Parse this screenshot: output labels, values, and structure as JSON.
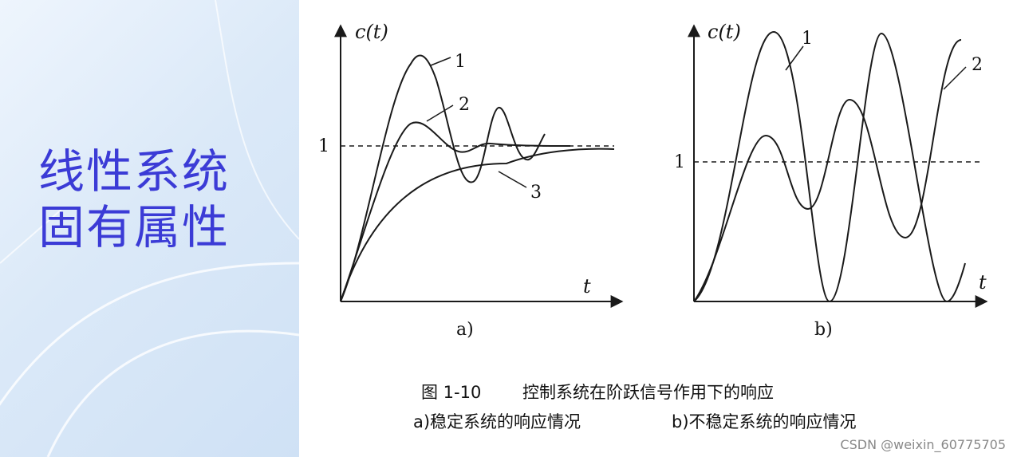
{
  "slide": {
    "title_line1": "线性系统",
    "title_line2": "固有属性"
  },
  "figure": {
    "panel_a": {
      "y_axis_label": "c(t)",
      "x_axis_label": "t",
      "ref_label": "1",
      "curve_labels": [
        "1",
        "2",
        "3"
      ],
      "sub_label": "a)"
    },
    "panel_b": {
      "y_axis_label": "c(t)",
      "x_axis_label": "t",
      "ref_label": "1",
      "curve_labels": [
        "1",
        "2"
      ],
      "sub_label": "b)"
    },
    "caption": {
      "line1_number": "图 1-10",
      "line1_text": "控制系统在阶跃信号作用下的响应",
      "line2_a": "a)稳定系统的响应情况",
      "line2_b": "b)不稳定系统的响应情况"
    }
  },
  "watermark": "CSDN @weixin_60775705",
  "colors": {
    "title": "#3b3bd6",
    "line": "#1a1a1a"
  }
}
